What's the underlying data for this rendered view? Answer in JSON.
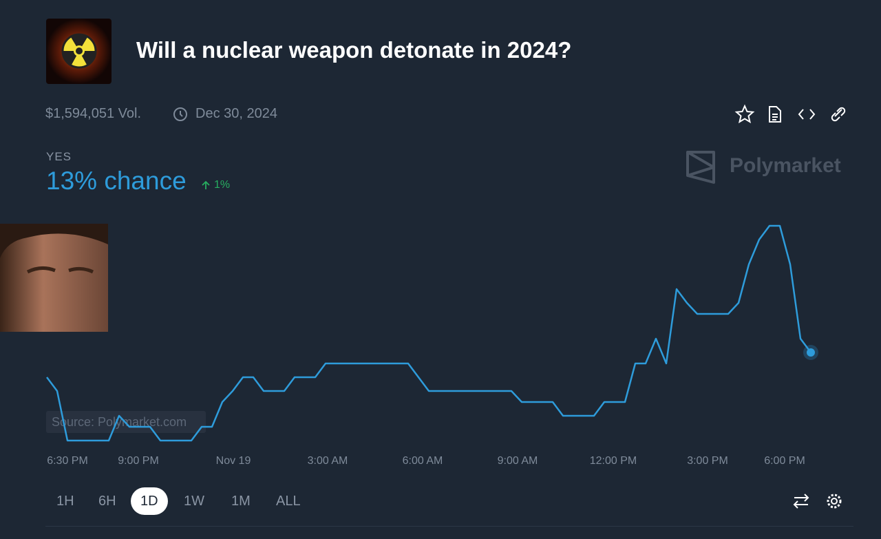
{
  "header": {
    "title": "Will a nuclear weapon detonate in 2024?",
    "volume": "$1,594,051 Vol.",
    "end_date": "Dec 30, 2024"
  },
  "outcome": {
    "label": "YES",
    "chance": "13% chance",
    "change": "1%"
  },
  "brand": "Polymarket",
  "chart_data": {
    "type": "line",
    "source": "Source: Polymarket.com",
    "x_labels": [
      "6:30 PM",
      "9:00 PM",
      "Nov 19",
      "3:00 AM",
      "6:00 AM",
      "9:00 AM",
      "12:00 PM",
      "3:00 PM",
      "6:00 PM"
    ],
    "ylim": [
      9.5,
      17.8
    ],
    "series": [
      {
        "color": "#2e9cdb",
        "values": [
          12.1,
          11.6,
          9.8,
          9.8,
          9.8,
          9.8,
          9.8,
          10.7,
          10.3,
          10.3,
          10.3,
          9.8,
          9.8,
          9.8,
          9.8,
          10.3,
          10.3,
          11.2,
          11.6,
          12.1,
          12.1,
          11.6,
          11.6,
          11.6,
          12.1,
          12.1,
          12.1,
          12.6,
          12.6,
          12.6,
          12.6,
          12.6,
          12.6,
          12.6,
          12.6,
          12.6,
          12.1,
          11.6,
          11.6,
          11.6,
          11.6,
          11.6,
          11.6,
          11.6,
          11.6,
          11.6,
          11.2,
          11.2,
          11.2,
          11.2,
          10.7,
          10.7,
          10.7,
          10.7,
          11.2,
          11.2,
          11.2,
          12.6,
          12.6,
          13.5,
          12.6,
          15.3,
          14.8,
          14.4,
          14.4,
          14.4,
          14.4,
          14.8,
          16.2,
          17.1,
          17.6,
          17.6,
          16.2,
          13.5,
          13
        ]
      }
    ]
  },
  "controls": {
    "ranges": [
      "1H",
      "6H",
      "1D",
      "1W",
      "1M",
      "ALL"
    ],
    "active_range": 2
  }
}
